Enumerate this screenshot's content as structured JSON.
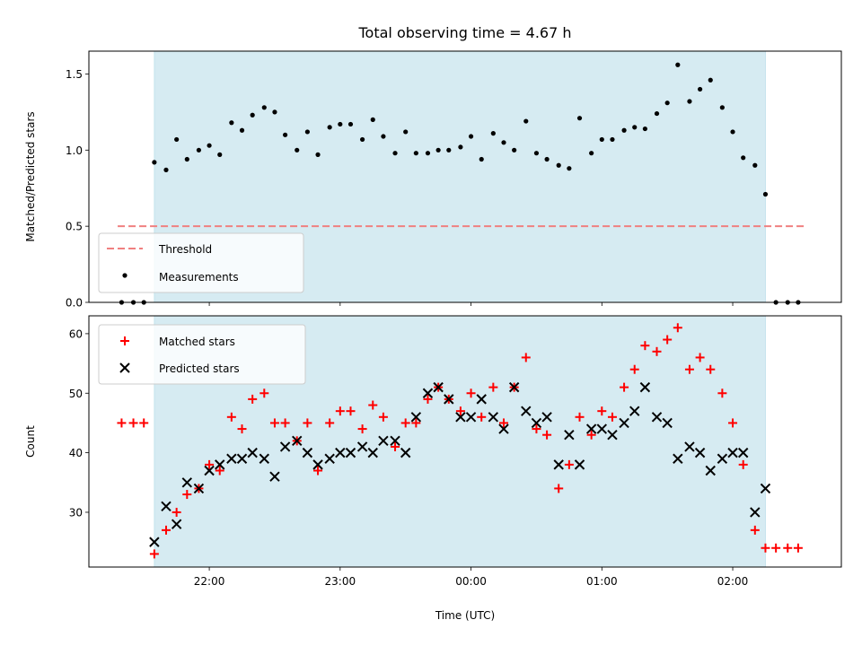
{
  "chart_data": [
    {
      "type": "scatter",
      "title": "Total observing time = 4.67 h",
      "xlabel": "",
      "ylabel": "Matched/Predicted stars",
      "x_unit": "hours relative to 00:00 UTC",
      "ylim": [
        0,
        1.65
      ],
      "yticks": [
        0.0,
        0.5,
        1.0,
        1.5
      ],
      "ytick_labels": [
        "0.0",
        "0.5",
        "1.0",
        "1.5"
      ],
      "observing_window": [
        -2.42,
        2.25
      ],
      "threshold": {
        "name": "Threshold",
        "value": 0.5,
        "x_range": [
          -2.7,
          2.55
        ],
        "color": "#f08080",
        "style": "dashed"
      },
      "legend": {
        "placement": "lower-left",
        "entries": [
          "Threshold",
          "Measurements"
        ]
      },
      "series": [
        {
          "name": "Measurements",
          "color": "#000000",
          "marker": "dot",
          "x": [
            -2.67,
            -2.58,
            -2.5,
            -2.42,
            -2.33,
            -2.25,
            -2.17,
            -2.08,
            -2.0,
            -1.92,
            -1.83,
            -1.75,
            -1.67,
            -1.58,
            -1.5,
            -1.42,
            -1.33,
            -1.25,
            -1.17,
            -1.08,
            -1.0,
            -0.92,
            -0.83,
            -0.75,
            -0.67,
            -0.58,
            -0.5,
            -0.42,
            -0.33,
            -0.25,
            -0.17,
            -0.08,
            0.0,
            0.08,
            0.17,
            0.25,
            0.33,
            0.42,
            0.5,
            0.58,
            0.67,
            0.75,
            0.83,
            0.92,
            1.0,
            1.08,
            1.17,
            1.25,
            1.33,
            1.42,
            1.5,
            1.58,
            1.67,
            1.75,
            1.83,
            1.92,
            2.0,
            2.08,
            2.17,
            2.25,
            2.33,
            2.42,
            2.5
          ],
          "y": [
            0.0,
            0.0,
            0.0,
            0.92,
            0.87,
            1.07,
            0.94,
            1.0,
            1.03,
            0.97,
            1.18,
            1.13,
            1.23,
            1.28,
            1.25,
            1.1,
            1.0,
            1.12,
            0.97,
            1.15,
            1.17,
            1.17,
            1.07,
            1.2,
            1.09,
            0.98,
            1.12,
            0.98,
            0.98,
            1.0,
            1.0,
            1.02,
            1.09,
            0.94,
            1.11,
            1.05,
            1.0,
            1.19,
            0.98,
            0.94,
            0.9,
            0.88,
            1.21,
            0.98,
            1.07,
            1.07,
            1.13,
            1.15,
            1.14,
            1.24,
            1.31,
            1.56,
            1.32,
            1.4,
            1.46,
            1.28,
            1.12,
            0.95,
            0.9,
            0.71,
            0.0,
            0.0,
            0.0
          ]
        }
      ]
    },
    {
      "type": "scatter",
      "title": "",
      "xlabel": "Time (UTC)",
      "ylabel": "Count",
      "ylim": [
        20.8,
        63
      ],
      "yticks": [
        30,
        40,
        50,
        60
      ],
      "ytick_labels": [
        "30",
        "40",
        "50",
        "60"
      ],
      "xticks": [
        -2,
        -1,
        0,
        1,
        2
      ],
      "xtick_labels": [
        "22:00",
        "23:00",
        "00:00",
        "01:00",
        "02:00"
      ],
      "xlim": [
        -2.92,
        2.83
      ],
      "observing_window": [
        -2.42,
        2.25
      ],
      "legend": {
        "placement": "upper-left",
        "entries": [
          "Matched stars",
          "Predicted stars"
        ]
      },
      "series": [
        {
          "name": "Matched stars",
          "color": "#ff0000",
          "marker": "plus",
          "x": [
            -2.67,
            -2.58,
            -2.5,
            -2.42,
            -2.33,
            -2.25,
            -2.17,
            -2.08,
            -2.0,
            -1.92,
            -1.83,
            -1.75,
            -1.67,
            -1.58,
            -1.5,
            -1.42,
            -1.33,
            -1.25,
            -1.17,
            -1.08,
            -1.0,
            -0.92,
            -0.83,
            -0.75,
            -0.67,
            -0.58,
            -0.5,
            -0.42,
            -0.33,
            -0.25,
            -0.17,
            -0.08,
            0.0,
            0.08,
            0.17,
            0.25,
            0.33,
            0.42,
            0.5,
            0.58,
            0.67,
            0.75,
            0.83,
            0.92,
            1.0,
            1.08,
            1.17,
            1.25,
            1.33,
            1.42,
            1.5,
            1.58,
            1.67,
            1.75,
            1.83,
            1.92,
            2.0,
            2.08,
            2.17,
            2.25,
            2.33,
            2.42,
            2.5
          ],
          "y": [
            45,
            45,
            45,
            23,
            27,
            30,
            33,
            34,
            38,
            37,
            46,
            44,
            49,
            50,
            45,
            45,
            42,
            45,
            37,
            45,
            47,
            47,
            44,
            48,
            46,
            41,
            45,
            45,
            49,
            51,
            49,
            47,
            50,
            46,
            51,
            45,
            51,
            56,
            44,
            43,
            34,
            38,
            46,
            43,
            47,
            46,
            51,
            54,
            58,
            57,
            59,
            61,
            54,
            56,
            54,
            50,
            45,
            38,
            27,
            24,
            24,
            24,
            24
          ]
        },
        {
          "name": "Predicted stars",
          "color": "#000000",
          "marker": "cross",
          "x": [
            -2.42,
            -2.33,
            -2.25,
            -2.17,
            -2.08,
            -2.0,
            -1.92,
            -1.83,
            -1.75,
            -1.67,
            -1.58,
            -1.5,
            -1.42,
            -1.33,
            -1.25,
            -1.17,
            -1.08,
            -1.0,
            -0.92,
            -0.83,
            -0.75,
            -0.67,
            -0.58,
            -0.5,
            -0.42,
            -0.33,
            -0.25,
            -0.17,
            -0.08,
            0.0,
            0.08,
            0.17,
            0.25,
            0.33,
            0.42,
            0.5,
            0.58,
            0.67,
            0.75,
            0.83,
            0.92,
            1.0,
            1.08,
            1.17,
            1.25,
            1.33,
            1.42,
            1.5,
            1.58,
            1.67,
            1.75,
            1.83,
            1.92,
            2.0,
            2.08,
            2.17,
            2.25
          ],
          "y": [
            25,
            31,
            28,
            35,
            34,
            37,
            38,
            39,
            39,
            40,
            39,
            36,
            41,
            42,
            40,
            38,
            39,
            40,
            40,
            41,
            40,
            42,
            42,
            40,
            46,
            50,
            51,
            49,
            46,
            46,
            49,
            46,
            44,
            51,
            47,
            45,
            46,
            38,
            43,
            38,
            44,
            44,
            43,
            45,
            47,
            51,
            46,
            45,
            39,
            41,
            40,
            37,
            39,
            40,
            40,
            30,
            34
          ]
        }
      ]
    }
  ]
}
